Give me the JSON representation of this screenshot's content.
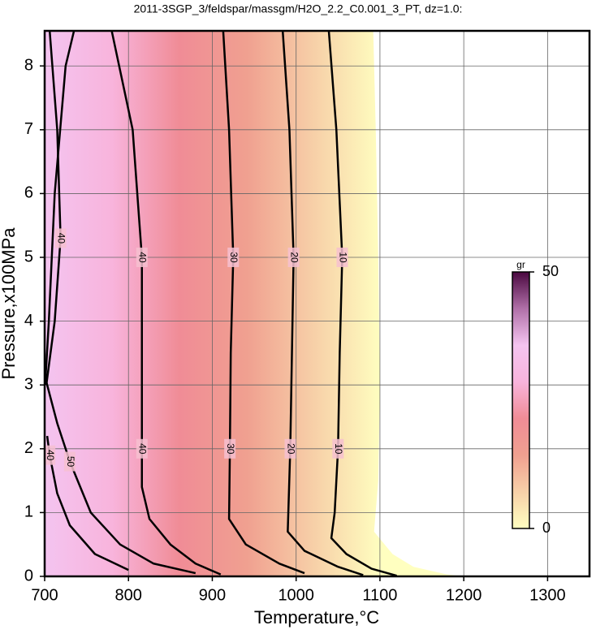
{
  "chart_data": {
    "type": "contour",
    "title": "2011-3SGP_3/feldspar/massgm/H2O_2.2_C0.001_3_PT, dz=1.0:",
    "x_label": "Temperature,°C",
    "y_label": "Pressure,x100MPa",
    "xlim": [
      700,
      1350
    ],
    "ylim": [
      0,
      8.55
    ],
    "xticks": [
      700,
      800,
      900,
      1000,
      1100,
      1200,
      1300
    ],
    "yticks": [
      0,
      1,
      2,
      3,
      4,
      5,
      6,
      7,
      8
    ],
    "grid": true,
    "line_color": "#000000",
    "domain": {
      "x": [
        700,
        700,
        1092,
        1095,
        1098,
        1100,
        1098,
        1093,
        1115,
        1140,
        1180,
        1200
      ],
      "y": [
        0,
        8.55,
        8.55,
        7,
        5,
        3,
        1.5,
        0.7,
        0.35,
        0.15,
        0.03,
        0
      ]
    },
    "contours": [
      {
        "level": 10,
        "x": [
          1039,
          1048,
          1055,
          1052,
          1050,
          1046,
          1042,
          1060,
          1090,
          1120
        ],
        "y": [
          8.55,
          7,
          5,
          3.5,
          2,
          1,
          0.6,
          0.35,
          0.12,
          0.01
        ]
      },
      {
        "level": 20,
        "x": [
          984,
          992,
          997,
          995,
          993,
          990,
          1010,
          1050,
          1080
        ],
        "y": [
          8.55,
          7,
          5,
          3.5,
          2,
          0.7,
          0.4,
          0.15,
          0.02
        ]
      },
      {
        "level": 30,
        "x": [
          913,
          920,
          925,
          922,
          921,
          920,
          940,
          980,
          1010
        ],
        "y": [
          8.55,
          7,
          5,
          3.5,
          2,
          0.9,
          0.5,
          0.2,
          0.05
        ]
      },
      {
        "level": 40,
        "x": [
          780,
          805,
          816,
          816,
          816,
          816,
          825,
          850,
          880,
          910
        ],
        "y": [
          8.55,
          7,
          5,
          3.5,
          2,
          1.4,
          0.9,
          0.5,
          0.2,
          0.03
        ]
      },
      {
        "level": 50,
        "x": [
          735,
          725,
          712,
          705,
          701,
          715,
          730,
          755,
          790,
          830,
          880
        ],
        "y": [
          8.55,
          8,
          6,
          4,
          3.1,
          2.4,
          1.8,
          1.0,
          0.5,
          0.2,
          0.05
        ]
      },
      {
        "level": 40,
        "x": [
          706,
          715,
          719,
          712,
          702
        ],
        "y": [
          8.55,
          7,
          5.3,
          4,
          3.0
        ]
      },
      {
        "level": 40,
        "x": [
          703,
          706,
          715,
          730,
          760,
          800
        ],
        "y": [
          2.2,
          1.9,
          1.3,
          0.8,
          0.35,
          0.1
        ]
      }
    ],
    "colorbar": {
      "label": "gr",
      "clim": [
        0,
        50
      ],
      "cticks": [
        0,
        50
      ],
      "colors": [
        "#ffffc0",
        "#f7d0a8",
        "#f0a090",
        "#f08c96",
        "#f8b4dc",
        "#f4c4f0",
        "#b070a8",
        "#4a0840"
      ]
    }
  }
}
